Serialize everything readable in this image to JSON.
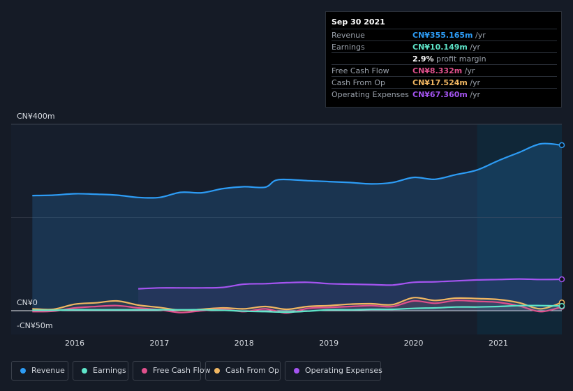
{
  "tooltip": {
    "date": "Sep 30 2021",
    "rows": [
      {
        "label": "Revenue",
        "value": "CN¥355.165m",
        "unit": " /yr",
        "color": "#2d9cf5"
      },
      {
        "label": "Earnings",
        "value": "CN¥10.149m",
        "unit": " /yr",
        "color": "#5ee5c9"
      },
      {
        "label": "",
        "value": "2.9%",
        "unit": " profit margin",
        "color": "#ffffff"
      },
      {
        "label": "Free Cash Flow",
        "value": "CN¥8.332m",
        "unit": " /yr",
        "color": "#e0508c"
      },
      {
        "label": "Cash From Op",
        "value": "CN¥17.524m",
        "unit": " /yr",
        "color": "#f0b662"
      },
      {
        "label": "Operating Expenses",
        "value": "CN¥67.360m",
        "unit": " /yr",
        "color": "#a454f0"
      }
    ]
  },
  "chart_data": {
    "type": "line",
    "y_top_label": "CN¥400m",
    "y_zero_label": "CN¥0",
    "y_bottom_label": "-CN¥50m",
    "ylim": [
      -50,
      400
    ],
    "x_ticks": [
      "2016",
      "2017",
      "2018",
      "2019",
      "2020",
      "2021"
    ],
    "x_tick_values": [
      2016,
      2017,
      2018,
      2019,
      2020,
      2021
    ],
    "xlim": [
      2015.25,
      2021.75
    ],
    "highlight_from": 2020.75,
    "series": [
      {
        "name": "Revenue",
        "color": "#2d9cf5",
        "fill": true,
        "x": [
          2015.5,
          2015.75,
          2016.0,
          2016.25,
          2016.5,
          2016.75,
          2017.0,
          2017.25,
          2017.5,
          2017.75,
          2018.0,
          2018.25,
          2018.4,
          2018.75,
          2019.0,
          2019.25,
          2019.5,
          2019.75,
          2020.0,
          2020.25,
          2020.5,
          2020.75,
          2021.0,
          2021.25,
          2021.5,
          2021.75
        ],
        "values": [
          247,
          248,
          251,
          250,
          248,
          243,
          243,
          254,
          253,
          262,
          266,
          265,
          281,
          279,
          277,
          275,
          272,
          275,
          286,
          282,
          292,
          302,
          322,
          340,
          358,
          355.165
        ]
      },
      {
        "name": "Operating Expenses",
        "color": "#a454f0",
        "fill": false,
        "x": [
          2016.75,
          2017.0,
          2017.25,
          2017.5,
          2017.75,
          2018.0,
          2018.25,
          2018.5,
          2018.75,
          2019.0,
          2019.25,
          2019.5,
          2019.75,
          2020.0,
          2020.25,
          2020.5,
          2020.75,
          2021.0,
          2021.25,
          2021.5,
          2021.75
        ],
        "values": [
          47,
          49,
          49,
          49,
          50,
          57,
          58,
          60,
          61,
          58,
          57,
          56,
          55,
          61,
          62,
          64,
          66,
          67,
          68,
          67,
          67.36
        ]
      },
      {
        "name": "Cash From Op",
        "color": "#f0b662",
        "fill": false,
        "x": [
          2015.5,
          2015.75,
          2016.0,
          2016.25,
          2016.5,
          2016.75,
          2017.0,
          2017.25,
          2017.5,
          2017.75,
          2018.0,
          2018.25,
          2018.5,
          2018.75,
          2019.0,
          2019.25,
          2019.5,
          2019.75,
          2020.0,
          2020.25,
          2020.5,
          2020.75,
          2021.0,
          2021.25,
          2021.5,
          2021.75
        ],
        "values": [
          4,
          3,
          14,
          17,
          21,
          12,
          7,
          1,
          3,
          6,
          4,
          9,
          3,
          9,
          11,
          14,
          15,
          13,
          28,
          22,
          27,
          26,
          24,
          17,
          4,
          17.524
        ]
      },
      {
        "name": "Free Cash Flow",
        "color": "#e0508c",
        "fill": false,
        "x": [
          2015.5,
          2015.75,
          2016.0,
          2016.25,
          2016.5,
          2016.75,
          2017.0,
          2017.25,
          2017.5,
          2017.75,
          2018.0,
          2018.25,
          2018.5,
          2018.75,
          2019.0,
          2019.25,
          2019.5,
          2019.75,
          2020.0,
          2020.25,
          2020.5,
          2020.75,
          2021.0,
          2021.25,
          2021.5,
          2021.75
        ],
        "values": [
          -2,
          -1,
          6,
          9,
          11,
          6,
          2,
          -4,
          0,
          3,
          -2,
          4,
          -5,
          5,
          7,
          9,
          11,
          9,
          21,
          16,
          22,
          20,
          18,
          10,
          -2,
          8.332
        ]
      },
      {
        "name": "Earnings",
        "color": "#5ee5c9",
        "fill": false,
        "x": [
          2015.5,
          2015.75,
          2016.0,
          2016.25,
          2016.5,
          2016.75,
          2017.0,
          2017.25,
          2017.5,
          2017.75,
          2018.0,
          2018.25,
          2018.5,
          2018.75,
          2019.0,
          2019.25,
          2019.5,
          2019.75,
          2020.0,
          2020.25,
          2020.5,
          2020.75,
          2021.0,
          2021.25,
          2021.5,
          2021.75
        ],
        "values": [
          1,
          1,
          2,
          2,
          2,
          2,
          2,
          2,
          2,
          1,
          -1,
          -2,
          -3,
          -1,
          2,
          2,
          3,
          3,
          5,
          6,
          8,
          8,
          9,
          11,
          11,
          10.149
        ]
      }
    ]
  },
  "legend": [
    {
      "label": "Revenue",
      "color": "#2d9cf5"
    },
    {
      "label": "Earnings",
      "color": "#5ee5c9"
    },
    {
      "label": "Free Cash Flow",
      "color": "#e0508c"
    },
    {
      "label": "Cash From Op",
      "color": "#f0b662"
    },
    {
      "label": "Operating Expenses",
      "color": "#a454f0"
    }
  ]
}
